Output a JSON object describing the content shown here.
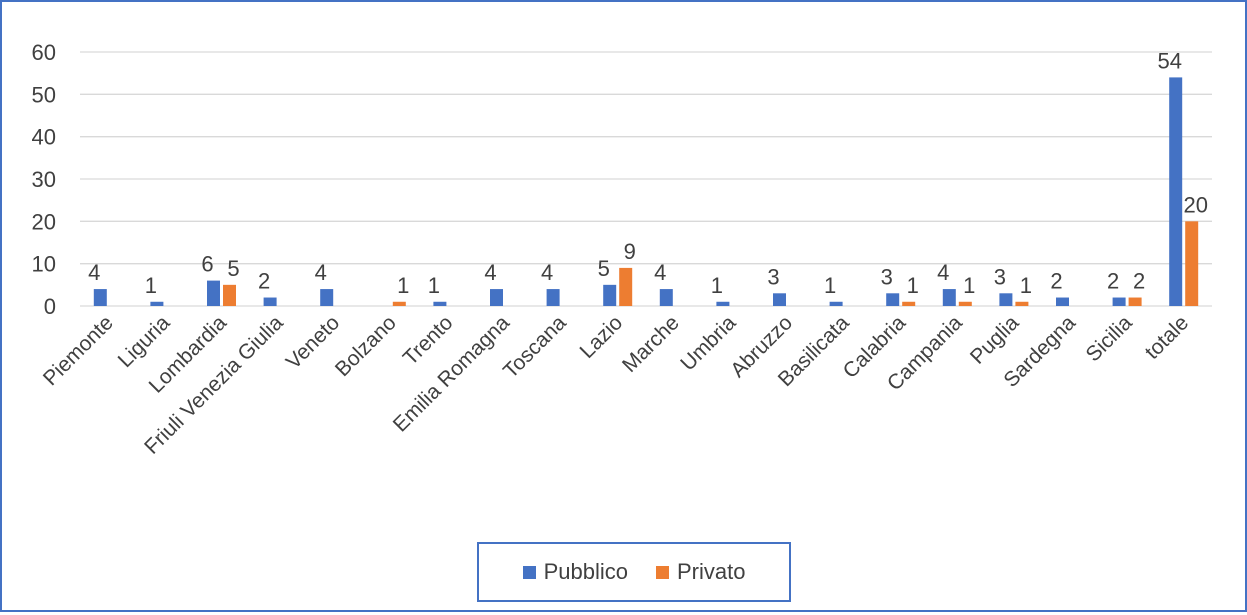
{
  "chart_data": {
    "type": "bar",
    "title": "",
    "xlabel": "",
    "ylabel": "",
    "ylim": [
      0,
      60
    ],
    "yticks": [
      0,
      10,
      20,
      30,
      40,
      50,
      60
    ],
    "grid": true,
    "legend_position": "bottom",
    "categories": [
      "Piemonte",
      "Liguria",
      "Lombardia",
      "Friuli Venezia Giulia",
      "Veneto",
      "Bolzano",
      "Trento",
      "Emilia Romagna",
      "Toscana",
      "Lazio",
      "Marche",
      "Umbria",
      "Abruzzo",
      "Basilicata",
      "Calabria",
      "Campania",
      "Puglia",
      "Sardegna",
      "Sicilia",
      "totale"
    ],
    "series": [
      {
        "name": "Pubblico",
        "color": "#4472c4",
        "values": [
          4,
          1,
          6,
          2,
          4,
          null,
          1,
          4,
          4,
          5,
          4,
          1,
          3,
          1,
          3,
          4,
          3,
          2,
          2,
          54
        ]
      },
      {
        "name": "Privato",
        "color": "#ed7d31",
        "values": [
          null,
          null,
          5,
          null,
          null,
          1,
          null,
          null,
          null,
          9,
          null,
          null,
          null,
          null,
          1,
          1,
          1,
          null,
          2,
          20
        ]
      }
    ]
  }
}
